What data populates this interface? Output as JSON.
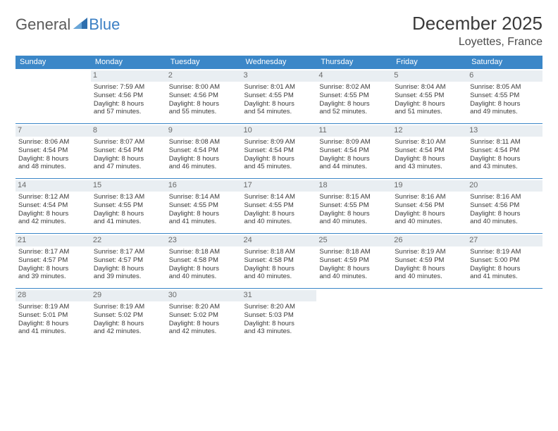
{
  "brand": {
    "general": "General",
    "blue": "Blue"
  },
  "title": "December 2025",
  "location": "Loyettes, France",
  "colors": {
    "header_bg": "#3b87c8",
    "daynum_bg": "#e9eef2",
    "text": "#3a3a3a",
    "row_border": "#3b87c8"
  },
  "weekdays": [
    "Sunday",
    "Monday",
    "Tuesday",
    "Wednesday",
    "Thursday",
    "Friday",
    "Saturday"
  ],
  "weeks": [
    [
      null,
      {
        "n": "1",
        "rise": "7:59 AM",
        "set": "4:56 PM",
        "d1": "Daylight: 8 hours",
        "d2": "and 57 minutes."
      },
      {
        "n": "2",
        "rise": "8:00 AM",
        "set": "4:56 PM",
        "d1": "Daylight: 8 hours",
        "d2": "and 55 minutes."
      },
      {
        "n": "3",
        "rise": "8:01 AM",
        "set": "4:55 PM",
        "d1": "Daylight: 8 hours",
        "d2": "and 54 minutes."
      },
      {
        "n": "4",
        "rise": "8:02 AM",
        "set": "4:55 PM",
        "d1": "Daylight: 8 hours",
        "d2": "and 52 minutes."
      },
      {
        "n": "5",
        "rise": "8:04 AM",
        "set": "4:55 PM",
        "d1": "Daylight: 8 hours",
        "d2": "and 51 minutes."
      },
      {
        "n": "6",
        "rise": "8:05 AM",
        "set": "4:55 PM",
        "d1": "Daylight: 8 hours",
        "d2": "and 49 minutes."
      }
    ],
    [
      {
        "n": "7",
        "rise": "8:06 AM",
        "set": "4:54 PM",
        "d1": "Daylight: 8 hours",
        "d2": "and 48 minutes."
      },
      {
        "n": "8",
        "rise": "8:07 AM",
        "set": "4:54 PM",
        "d1": "Daylight: 8 hours",
        "d2": "and 47 minutes."
      },
      {
        "n": "9",
        "rise": "8:08 AM",
        "set": "4:54 PM",
        "d1": "Daylight: 8 hours",
        "d2": "and 46 minutes."
      },
      {
        "n": "10",
        "rise": "8:09 AM",
        "set": "4:54 PM",
        "d1": "Daylight: 8 hours",
        "d2": "and 45 minutes."
      },
      {
        "n": "11",
        "rise": "8:09 AM",
        "set": "4:54 PM",
        "d1": "Daylight: 8 hours",
        "d2": "and 44 minutes."
      },
      {
        "n": "12",
        "rise": "8:10 AM",
        "set": "4:54 PM",
        "d1": "Daylight: 8 hours",
        "d2": "and 43 minutes."
      },
      {
        "n": "13",
        "rise": "8:11 AM",
        "set": "4:54 PM",
        "d1": "Daylight: 8 hours",
        "d2": "and 43 minutes."
      }
    ],
    [
      {
        "n": "14",
        "rise": "8:12 AM",
        "set": "4:54 PM",
        "d1": "Daylight: 8 hours",
        "d2": "and 42 minutes."
      },
      {
        "n": "15",
        "rise": "8:13 AM",
        "set": "4:55 PM",
        "d1": "Daylight: 8 hours",
        "d2": "and 41 minutes."
      },
      {
        "n": "16",
        "rise": "8:14 AM",
        "set": "4:55 PM",
        "d1": "Daylight: 8 hours",
        "d2": "and 41 minutes."
      },
      {
        "n": "17",
        "rise": "8:14 AM",
        "set": "4:55 PM",
        "d1": "Daylight: 8 hours",
        "d2": "and 40 minutes."
      },
      {
        "n": "18",
        "rise": "8:15 AM",
        "set": "4:55 PM",
        "d1": "Daylight: 8 hours",
        "d2": "and 40 minutes."
      },
      {
        "n": "19",
        "rise": "8:16 AM",
        "set": "4:56 PM",
        "d1": "Daylight: 8 hours",
        "d2": "and 40 minutes."
      },
      {
        "n": "20",
        "rise": "8:16 AM",
        "set": "4:56 PM",
        "d1": "Daylight: 8 hours",
        "d2": "and 40 minutes."
      }
    ],
    [
      {
        "n": "21",
        "rise": "8:17 AM",
        "set": "4:57 PM",
        "d1": "Daylight: 8 hours",
        "d2": "and 39 minutes."
      },
      {
        "n": "22",
        "rise": "8:17 AM",
        "set": "4:57 PM",
        "d1": "Daylight: 8 hours",
        "d2": "and 39 minutes."
      },
      {
        "n": "23",
        "rise": "8:18 AM",
        "set": "4:58 PM",
        "d1": "Daylight: 8 hours",
        "d2": "and 40 minutes."
      },
      {
        "n": "24",
        "rise": "8:18 AM",
        "set": "4:58 PM",
        "d1": "Daylight: 8 hours",
        "d2": "and 40 minutes."
      },
      {
        "n": "25",
        "rise": "8:18 AM",
        "set": "4:59 PM",
        "d1": "Daylight: 8 hours",
        "d2": "and 40 minutes."
      },
      {
        "n": "26",
        "rise": "8:19 AM",
        "set": "4:59 PM",
        "d1": "Daylight: 8 hours",
        "d2": "and 40 minutes."
      },
      {
        "n": "27",
        "rise": "8:19 AM",
        "set": "5:00 PM",
        "d1": "Daylight: 8 hours",
        "d2": "and 41 minutes."
      }
    ],
    [
      {
        "n": "28",
        "rise": "8:19 AM",
        "set": "5:01 PM",
        "d1": "Daylight: 8 hours",
        "d2": "and 41 minutes."
      },
      {
        "n": "29",
        "rise": "8:19 AM",
        "set": "5:02 PM",
        "d1": "Daylight: 8 hours",
        "d2": "and 42 minutes."
      },
      {
        "n": "30",
        "rise": "8:20 AM",
        "set": "5:02 PM",
        "d1": "Daylight: 8 hours",
        "d2": "and 42 minutes."
      },
      {
        "n": "31",
        "rise": "8:20 AM",
        "set": "5:03 PM",
        "d1": "Daylight: 8 hours",
        "d2": "and 43 minutes."
      },
      null,
      null,
      null
    ]
  ],
  "labels": {
    "sunrise": "Sunrise:",
    "sunset": "Sunset:"
  }
}
